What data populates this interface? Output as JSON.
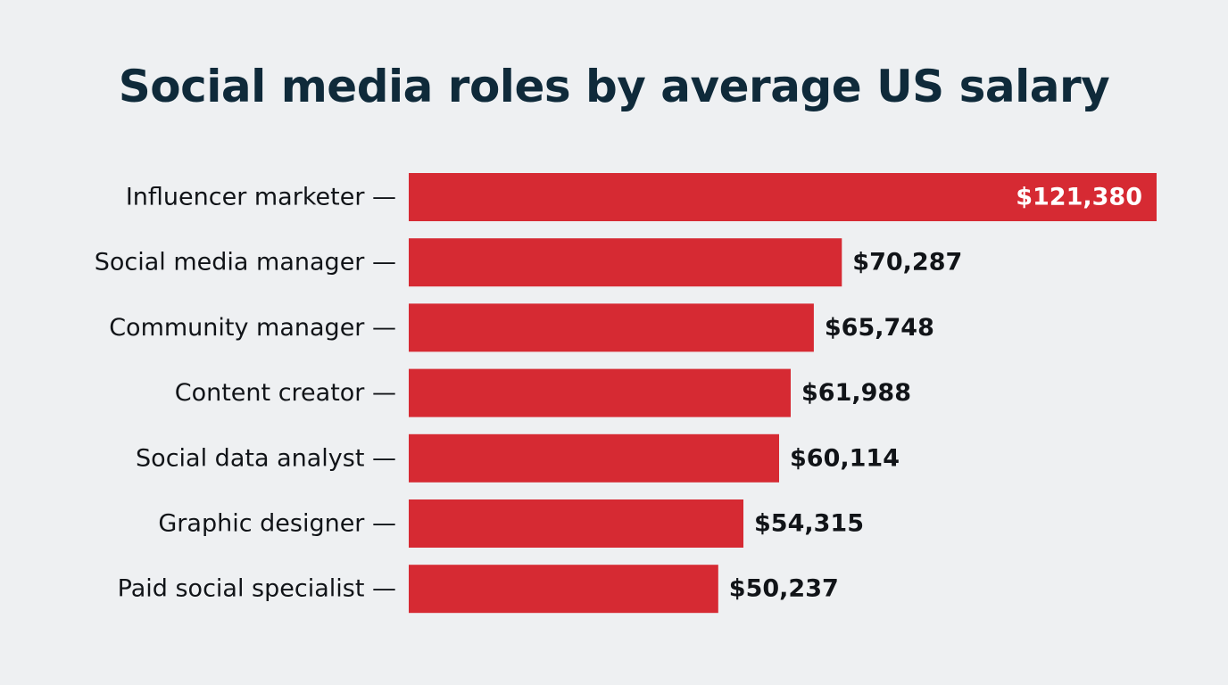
{
  "chart_data": {
    "type": "bar",
    "orientation": "horizontal",
    "title": "Social media roles by average US salary",
    "categories": [
      "Influencer marketer",
      "Social media manager",
      "Community manager",
      "Content creator",
      "Social data analyst",
      "Graphic designer",
      "Paid social specialist"
    ],
    "values": [
      121380,
      70287,
      65748,
      61988,
      60114,
      54315,
      50237
    ],
    "value_labels": [
      "$121,380",
      "$70,287",
      "$65,748",
      "$61,988",
      "$60,114",
      "$54,315",
      "$50,237"
    ],
    "label_suffix": " —",
    "bar_color": "#d62a33",
    "grid": false,
    "legend": "none"
  }
}
